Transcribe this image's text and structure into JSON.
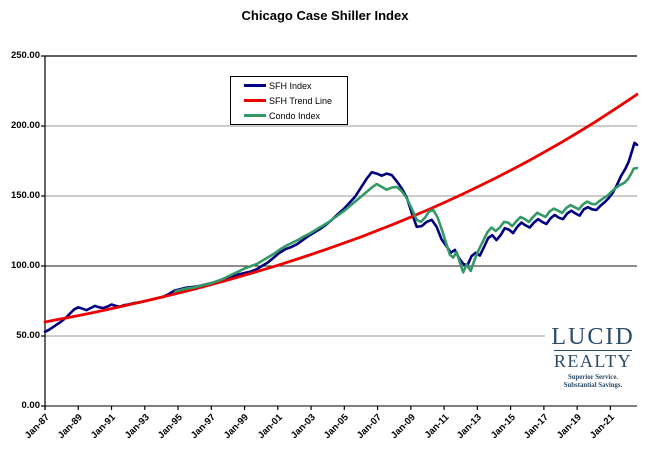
{
  "title": "Chicago Case Shiller Index",
  "colors": {
    "sfh_index": "#000080",
    "sfh_trend": "#ee0000",
    "condo_index": "#339966",
    "gridline": "#999999",
    "baseline_100": "#1a1a1a",
    "axis": "#000000",
    "bottom_axis": "#333333",
    "logo_navy": "#2b4a68"
  },
  "logo": {
    "line1": "LUCID",
    "line2": "REALTY",
    "tagline1": "Superior Service.",
    "tagline2": "Substantial Savings."
  },
  "chart_data": {
    "type": "line",
    "title": "Chicago Case Shiller Index",
    "xlabel": "",
    "ylabel": "",
    "xlim": [
      1987,
      2022.6
    ],
    "ylim": [
      0,
      250
    ],
    "grid": "horizontal",
    "legend_position": "top-left-inside",
    "y_ticks": [
      0,
      50,
      100,
      150,
      200,
      250
    ],
    "y_tick_labels": [
      "0.00",
      "50.00",
      "100.00",
      "150.00",
      "200.00",
      "250.00"
    ],
    "x_tick_years": [
      1987,
      1989,
      1991,
      1993,
      1995,
      1997,
      1999,
      2001,
      2003,
      2005,
      2007,
      2009,
      2011,
      2013,
      2015,
      2017,
      2019,
      2021
    ],
    "x_tick_labels": [
      "Jan-87",
      "Jan-89",
      "Jan-91",
      "Jan-93",
      "Jan-95",
      "Jan-97",
      "Jan-99",
      "Jan-01",
      "Jan-03",
      "Jan-05",
      "Jan-07",
      "Jan-09",
      "Jan-11",
      "Jan-13",
      "Jan-15",
      "Jan-17",
      "Jan-19",
      "Jan-21"
    ],
    "series": [
      {
        "name": "SFH Index",
        "color": "#000080",
        "width": 2.6,
        "points": [
          [
            1987,
            53
          ],
          [
            1987.25,
            54.5
          ],
          [
            1987.5,
            56.5
          ],
          [
            1987.75,
            58.5
          ],
          [
            1988,
            60.5
          ],
          [
            1988.25,
            63
          ],
          [
            1988.5,
            66
          ],
          [
            1988.75,
            69
          ],
          [
            1989,
            70.5
          ],
          [
            1989.25,
            69.5
          ],
          [
            1989.5,
            68.5
          ],
          [
            1989.75,
            70
          ],
          [
            1990,
            71.5
          ],
          [
            1990.25,
            70.5
          ],
          [
            1990.5,
            70
          ],
          [
            1990.75,
            71
          ],
          [
            1991,
            72.5
          ],
          [
            1991.25,
            71.5
          ],
          [
            1991.5,
            71
          ],
          [
            1991.75,
            72
          ],
          [
            1992,
            72.5
          ],
          [
            1992.35,
            73.5
          ],
          [
            1992.7,
            74
          ],
          [
            1993.05,
            75
          ],
          [
            1993.4,
            76
          ],
          [
            1993.75,
            77
          ],
          [
            1994.1,
            78
          ],
          [
            1994.45,
            80
          ],
          [
            1994.8,
            82.5
          ],
          [
            1995.15,
            83.5
          ],
          [
            1995.5,
            84.5
          ],
          [
            1995.85,
            85
          ],
          [
            1996.2,
            85.5
          ],
          [
            1996.55,
            86.5
          ],
          [
            1996.9,
            87.5
          ],
          [
            1997.25,
            88.5
          ],
          [
            1997.6,
            90
          ],
          [
            1997.95,
            91.5
          ],
          [
            1998.3,
            92.5
          ],
          [
            1998.65,
            94
          ],
          [
            1999,
            95
          ],
          [
            1999.35,
            96
          ],
          [
            1999.7,
            97.5
          ],
          [
            2000.05,
            100
          ],
          [
            2000.4,
            102.5
          ],
          [
            2000.75,
            106
          ],
          [
            2001.1,
            109.5
          ],
          [
            2001.45,
            112
          ],
          [
            2001.8,
            113.5
          ],
          [
            2002.15,
            115.5
          ],
          [
            2002.5,
            118.5
          ],
          [
            2002.85,
            121.5
          ],
          [
            2003.2,
            124
          ],
          [
            2003.55,
            126.5
          ],
          [
            2003.9,
            129.5
          ],
          [
            2004.25,
            133
          ],
          [
            2004.6,
            137
          ],
          [
            2004.95,
            140.5
          ],
          [
            2005.3,
            145
          ],
          [
            2005.65,
            149.5
          ],
          [
            2006,
            156
          ],
          [
            2006.35,
            162.5
          ],
          [
            2006.65,
            167
          ],
          [
            2006.95,
            166
          ],
          [
            2007.25,
            164.5
          ],
          [
            2007.55,
            166
          ],
          [
            2007.85,
            165
          ],
          [
            2008.15,
            160.5
          ],
          [
            2008.45,
            155.5
          ],
          [
            2008.75,
            149
          ],
          [
            2009.05,
            138
          ],
          [
            2009.35,
            128
          ],
          [
            2009.65,
            128.5
          ],
          [
            2009.95,
            131.5
          ],
          [
            2010.25,
            133
          ],
          [
            2010.55,
            128
          ],
          [
            2010.85,
            119
          ],
          [
            2011.15,
            114
          ],
          [
            2011.4,
            109.5
          ],
          [
            2011.65,
            111.5
          ],
          [
            2011.9,
            105.5
          ],
          [
            2012.15,
            101.5
          ],
          [
            2012.4,
            100.5
          ],
          [
            2012.65,
            107
          ],
          [
            2012.9,
            109.5
          ],
          [
            2013.15,
            107.5
          ],
          [
            2013.4,
            113.5
          ],
          [
            2013.65,
            120
          ],
          [
            2013.9,
            122
          ],
          [
            2014.15,
            118.5
          ],
          [
            2014.4,
            122
          ],
          [
            2014.65,
            127
          ],
          [
            2014.9,
            126
          ],
          [
            2015.15,
            123.5
          ],
          [
            2015.4,
            128
          ],
          [
            2015.65,
            131
          ],
          [
            2015.9,
            129
          ],
          [
            2016.15,
            127.5
          ],
          [
            2016.4,
            131
          ],
          [
            2016.65,
            133.5
          ],
          [
            2016.9,
            131.5
          ],
          [
            2017.15,
            130
          ],
          [
            2017.4,
            134
          ],
          [
            2017.65,
            136.5
          ],
          [
            2017.9,
            134.5
          ],
          [
            2018.15,
            133.5
          ],
          [
            2018.4,
            137.5
          ],
          [
            2018.65,
            139.5
          ],
          [
            2018.9,
            137.5
          ],
          [
            2019.15,
            136
          ],
          [
            2019.4,
            140.5
          ],
          [
            2019.65,
            142
          ],
          [
            2019.9,
            140.5
          ],
          [
            2020.15,
            140
          ],
          [
            2020.4,
            143
          ],
          [
            2020.65,
            145.5
          ],
          [
            2020.9,
            148.5
          ],
          [
            2021.15,
            152.5
          ],
          [
            2021.4,
            158
          ],
          [
            2021.65,
            164.5
          ],
          [
            2021.9,
            169.5
          ],
          [
            2022.1,
            174.5
          ],
          [
            2022.3,
            182
          ],
          [
            2022.45,
            188
          ],
          [
            2022.6,
            186.5
          ]
        ]
      },
      {
        "name": "SFH Trend Line",
        "color": "#ee0000",
        "width": 2.8,
        "points": [
          [
            1987,
            60
          ],
          [
            1988,
            62.3
          ],
          [
            1989,
            64.6
          ],
          [
            1990,
            67
          ],
          [
            1991,
            69.6
          ],
          [
            1992,
            72.2
          ],
          [
            1993,
            74.9
          ],
          [
            1994,
            77.7
          ],
          [
            1995,
            80.6
          ],
          [
            1996,
            83.6
          ],
          [
            1997,
            86.8
          ],
          [
            1998,
            90
          ],
          [
            1999,
            93.4
          ],
          [
            2000,
            96.9
          ],
          [
            2001,
            100.5
          ],
          [
            2002,
            104.3
          ],
          [
            2003,
            108.2
          ],
          [
            2004,
            112.3
          ],
          [
            2005,
            116.5
          ],
          [
            2006,
            120.8
          ],
          [
            2007,
            125.4
          ],
          [
            2008,
            130.1
          ],
          [
            2009,
            134.9
          ],
          [
            2010,
            140
          ],
          [
            2011,
            145.3
          ],
          [
            2012,
            150.7
          ],
          [
            2013,
            156.4
          ],
          [
            2014,
            162.2
          ],
          [
            2015,
            168.3
          ],
          [
            2016,
            174.6
          ],
          [
            2017,
            181.2
          ],
          [
            2018,
            187.9
          ],
          [
            2019,
            195
          ],
          [
            2020,
            202.3
          ],
          [
            2021,
            209.9
          ],
          [
            2022,
            217.7
          ],
          [
            2022.6,
            222.6
          ]
        ]
      },
      {
        "name": "Condo Index",
        "color": "#339966",
        "width": 2.6,
        "points": [
          [
            1994.85,
            82
          ],
          [
            1995.2,
            83
          ],
          [
            1995.55,
            84
          ],
          [
            1995.9,
            84.5
          ],
          [
            1996.25,
            85.5
          ],
          [
            1996.6,
            86.5
          ],
          [
            1996.95,
            87.5
          ],
          [
            1997.3,
            89
          ],
          [
            1997.65,
            90.5
          ],
          [
            1998,
            92.5
          ],
          [
            1998.35,
            94.5
          ],
          [
            1998.7,
            96.5
          ],
          [
            1999.05,
            98.5
          ],
          [
            1999.4,
            100
          ],
          [
            1999.75,
            101.5
          ],
          [
            2000.1,
            104
          ],
          [
            2000.45,
            106.5
          ],
          [
            2000.8,
            109
          ],
          [
            2001.15,
            112
          ],
          [
            2001.5,
            114.5
          ],
          [
            2001.85,
            116.5
          ],
          [
            2002.2,
            118.5
          ],
          [
            2002.55,
            121
          ],
          [
            2002.9,
            123
          ],
          [
            2003.25,
            125.5
          ],
          [
            2003.6,
            128
          ],
          [
            2003.95,
            130.5
          ],
          [
            2004.3,
            133.5
          ],
          [
            2004.65,
            136.5
          ],
          [
            2005,
            139.5
          ],
          [
            2005.35,
            143
          ],
          [
            2005.7,
            146.5
          ],
          [
            2006.05,
            150
          ],
          [
            2006.4,
            153.5
          ],
          [
            2006.7,
            156.5
          ],
          [
            2006.95,
            158.5
          ],
          [
            2007.25,
            156.5
          ],
          [
            2007.55,
            154.5
          ],
          [
            2007.85,
            156
          ],
          [
            2008.15,
            156.5
          ],
          [
            2008.45,
            153.5
          ],
          [
            2008.75,
            148.5
          ],
          [
            2009.05,
            141
          ],
          [
            2009.35,
            133
          ],
          [
            2009.6,
            131.5
          ],
          [
            2009.85,
            134.5
          ],
          [
            2010.1,
            139
          ],
          [
            2010.35,
            140
          ],
          [
            2010.6,
            135
          ],
          [
            2010.85,
            126.5
          ],
          [
            2011.1,
            117
          ],
          [
            2011.35,
            108
          ],
          [
            2011.55,
            106
          ],
          [
            2011.75,
            110
          ],
          [
            2011.95,
            102.5
          ],
          [
            2012.15,
            95.5
          ],
          [
            2012.35,
            101
          ],
          [
            2012.6,
            96.5
          ],
          [
            2012.85,
            105
          ],
          [
            2013.1,
            112
          ],
          [
            2013.35,
            118
          ],
          [
            2013.6,
            124
          ],
          [
            2013.85,
            127.5
          ],
          [
            2014.1,
            125
          ],
          [
            2014.35,
            127.5
          ],
          [
            2014.6,
            131.5
          ],
          [
            2014.85,
            131
          ],
          [
            2015.1,
            128.5
          ],
          [
            2015.35,
            132
          ],
          [
            2015.6,
            135
          ],
          [
            2015.85,
            133.5
          ],
          [
            2016.1,
            131.5
          ],
          [
            2016.35,
            135
          ],
          [
            2016.6,
            138
          ],
          [
            2016.85,
            136.5
          ],
          [
            2017.1,
            135
          ],
          [
            2017.35,
            139
          ],
          [
            2017.6,
            141
          ],
          [
            2017.85,
            139.5
          ],
          [
            2018.1,
            138
          ],
          [
            2018.35,
            141.5
          ],
          [
            2018.6,
            143.5
          ],
          [
            2018.85,
            142
          ],
          [
            2019.1,
            140.5
          ],
          [
            2019.35,
            144
          ],
          [
            2019.6,
            146
          ],
          [
            2019.85,
            144.5
          ],
          [
            2020.1,
            144
          ],
          [
            2020.35,
            146.5
          ],
          [
            2020.6,
            148.5
          ],
          [
            2020.85,
            150.5
          ],
          [
            2021.1,
            153.5
          ],
          [
            2021.35,
            156
          ],
          [
            2021.6,
            158
          ],
          [
            2021.85,
            159.5
          ],
          [
            2022.05,
            162
          ],
          [
            2022.25,
            166
          ],
          [
            2022.4,
            169.5
          ],
          [
            2022.6,
            170
          ]
        ]
      }
    ]
  }
}
